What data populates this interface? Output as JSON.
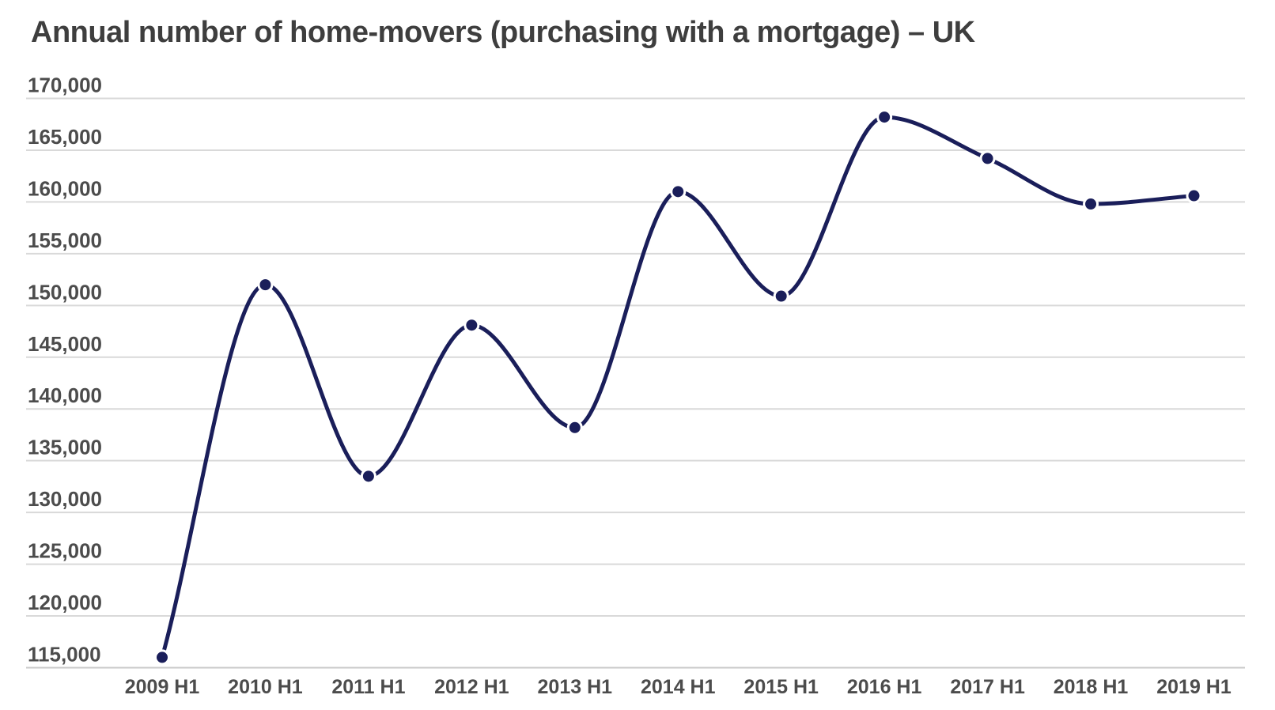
{
  "chart_data": {
    "type": "line",
    "title": "Annual number of home-movers (purchasing with a mortgage) – UK",
    "categories": [
      "2009 H1",
      "2010 H1",
      "2011 H1",
      "2012 H1",
      "2013 H1",
      "2014 H1",
      "2015 H1",
      "2016 H1",
      "2017 H1",
      "2018 H1",
      "2019 H1"
    ],
    "values": [
      116000,
      152000,
      133500,
      148100,
      138200,
      161000,
      150900,
      168200,
      164200,
      159800,
      160600
    ],
    "xlabel": "",
    "ylabel": "",
    "ylim": [
      115000,
      170000
    ],
    "ytick_step": 5000,
    "ytick_labels": [
      "115,000",
      "120,000",
      "125,000",
      "130,000",
      "135,000",
      "140,000",
      "145,000",
      "150,000",
      "155,000",
      "160,000",
      "165,000",
      "170,000"
    ],
    "grid": "horizontal-only",
    "legend": "none",
    "line_style": "smooth-monotone",
    "point_markers": true,
    "colors": {
      "line": "#1a1e5a",
      "point": "#1a1e5a",
      "point_halo": "#ffffff",
      "gridline": "#d9d9d9",
      "baseline": "#c9c9c9",
      "title_text": "#3e3e3e",
      "tick_text": "#4c4c4c",
      "background": "#ffffff"
    }
  }
}
